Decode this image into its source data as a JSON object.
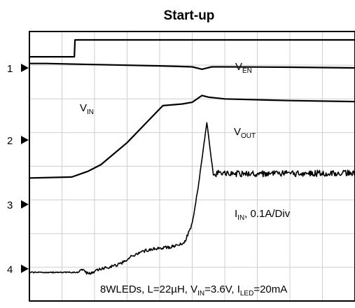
{
  "title": "Start-up",
  "channel_markers": [
    {
      "id": "ch1",
      "label": "1"
    },
    {
      "id": "ch2",
      "label": "2"
    },
    {
      "id": "ch3",
      "label": "3"
    },
    {
      "id": "ch4",
      "label": "4"
    }
  ],
  "trace_labels": {
    "ven": {
      "main": "V",
      "sub": "EN"
    },
    "vin": {
      "main": "V",
      "sub": "IN"
    },
    "vout": {
      "main": "V",
      "sub": "OUT"
    },
    "iin": {
      "main": "I",
      "sub": "IN",
      "rest": ", 0.1A/Div"
    }
  },
  "conditions": {
    "part1": "8WLEDs, L=22µH, V",
    "sub1": "IN",
    "part2": "=3.6V, I",
    "sub2": "LED",
    "part3": "=20mA"
  },
  "chart_data": {
    "type": "line",
    "title": "Start-up",
    "xlabel": "",
    "ylabel": "",
    "grid": true,
    "x_divisions": 10,
    "y_divisions": 8,
    "xlim": [
      0,
      10
    ],
    "ylim": [
      0,
      8
    ],
    "series": [
      {
        "name": "V_EN",
        "channel": "1",
        "x": [
          0,
          1.38,
          1.4,
          10
        ],
        "y": [
          7.25,
          7.25,
          7.75,
          7.75
        ]
      },
      {
        "name": "V_IN",
        "channel": "1",
        "x": [
          0,
          0.5,
          2.0,
          4.0,
          5.0,
          5.3,
          5.6,
          6.0,
          8.0,
          10
        ],
        "y": [
          7.05,
          7.05,
          7.02,
          6.98,
          6.95,
          6.88,
          6.95,
          6.95,
          6.94,
          6.92
        ]
      },
      {
        "name": "V_OUT",
        "channel": "2",
        "x": [
          0,
          1.3,
          1.8,
          2.2,
          3.0,
          3.6,
          4.1,
          4.7,
          5.0,
          5.3,
          5.5,
          6.0,
          8.0,
          10
        ],
        "y": [
          3.65,
          3.68,
          3.85,
          4.05,
          4.7,
          5.3,
          5.8,
          5.85,
          5.9,
          6.1,
          6.05,
          6.0,
          5.95,
          5.92
        ]
      },
      {
        "name": "I_IN",
        "channel": "3",
        "x": [
          0,
          1.5,
          1.6,
          1.8,
          2.2,
          2.8,
          3.1,
          3.4,
          3.8,
          4.3,
          4.5,
          4.75,
          5.0,
          5.2,
          5.45,
          5.55,
          5.65,
          5.8,
          6.0,
          8.0,
          10
        ],
        "y": [
          0.85,
          0.85,
          0.95,
          0.8,
          0.95,
          1.1,
          1.3,
          1.45,
          1.55,
          1.6,
          1.65,
          1.7,
          2.3,
          3.5,
          5.3,
          4.5,
          3.75,
          3.8,
          3.78,
          3.78,
          3.8
        ]
      }
    ]
  }
}
